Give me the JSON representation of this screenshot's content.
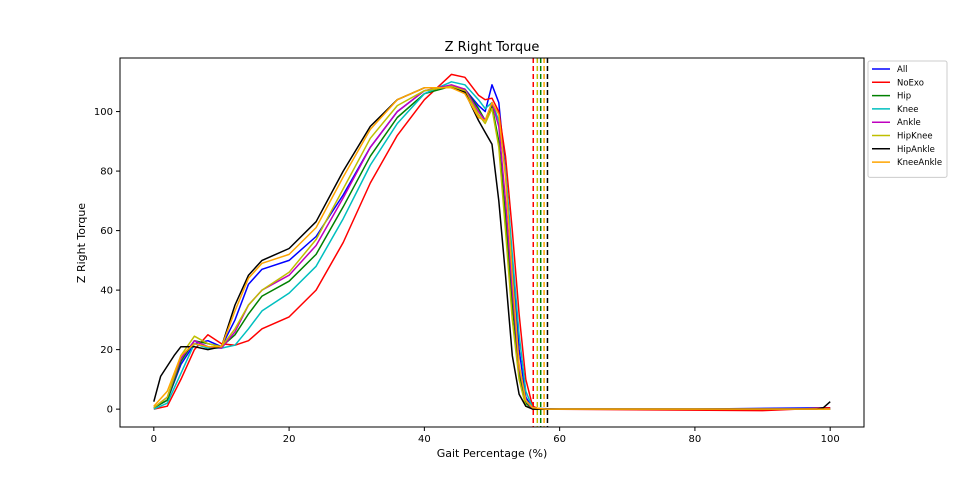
{
  "chart_data": {
    "type": "line",
    "title": "Z Right Torque",
    "xlabel": "Gait Percentage (%)",
    "ylabel": "Z Right Torque",
    "xlim": [
      -5,
      105
    ],
    "ylim": [
      -6,
      118
    ],
    "xticks": [
      0,
      20,
      40,
      60,
      80,
      100
    ],
    "yticks": [
      0,
      20,
      40,
      60,
      80,
      100
    ],
    "grid": false,
    "legend_position": "outside-top-right",
    "series": [
      {
        "name": "All",
        "color": "#0000ff",
        "points": [
          [
            0,
            0.5
          ],
          [
            2,
            3
          ],
          [
            4,
            15
          ],
          [
            6,
            22
          ],
          [
            8,
            23
          ],
          [
            10,
            21
          ],
          [
            12,
            30
          ],
          [
            14,
            42
          ],
          [
            16,
            47
          ],
          [
            20,
            50
          ],
          [
            24,
            58
          ],
          [
            28,
            72
          ],
          [
            32,
            88
          ],
          [
            36,
            100
          ],
          [
            40,
            107
          ],
          [
            44,
            108.5
          ],
          [
            46,
            107.5
          ],
          [
            48,
            102
          ],
          [
            49,
            100
          ],
          [
            50,
            109
          ],
          [
            51,
            103
          ],
          [
            52,
            80
          ],
          [
            53,
            50
          ],
          [
            54,
            20
          ],
          [
            55,
            4
          ],
          [
            56,
            0.3
          ],
          [
            60,
            0
          ],
          [
            80,
            0
          ],
          [
            100,
            0.5
          ]
        ]
      },
      {
        "name": "NoExo",
        "color": "#ff0000",
        "points": [
          [
            0,
            0
          ],
          [
            2,
            1
          ],
          [
            4,
            10
          ],
          [
            6,
            20
          ],
          [
            8,
            25
          ],
          [
            10,
            22
          ],
          [
            12,
            21.5
          ],
          [
            14,
            23
          ],
          [
            16,
            27
          ],
          [
            20,
            31
          ],
          [
            24,
            40
          ],
          [
            28,
            56
          ],
          [
            32,
            76
          ],
          [
            36,
            92
          ],
          [
            40,
            104
          ],
          [
            44,
            112.5
          ],
          [
            46,
            111.5
          ],
          [
            48,
            105.5
          ],
          [
            49,
            104
          ],
          [
            50,
            104.5
          ],
          [
            51,
            100
          ],
          [
            52,
            85
          ],
          [
            53,
            60
          ],
          [
            54,
            32
          ],
          [
            55,
            10
          ],
          [
            56,
            1
          ],
          [
            57,
            0
          ],
          [
            90,
            -0.5
          ],
          [
            100,
            0.5
          ]
        ]
      },
      {
        "name": "Hip",
        "color": "#008000",
        "points": [
          [
            0,
            0.5
          ],
          [
            2,
            3
          ],
          [
            4,
            16
          ],
          [
            6,
            23
          ],
          [
            8,
            22
          ],
          [
            10,
            21
          ],
          [
            12,
            25
          ],
          [
            14,
            32
          ],
          [
            16,
            38
          ],
          [
            20,
            43
          ],
          [
            24,
            52
          ],
          [
            28,
            68
          ],
          [
            32,
            85
          ],
          [
            36,
            98
          ],
          [
            40,
            106
          ],
          [
            44,
            108.5
          ],
          [
            46,
            107.5
          ],
          [
            48,
            101
          ],
          [
            49,
            97
          ],
          [
            50,
            102
          ],
          [
            51,
            90
          ],
          [
            52,
            65
          ],
          [
            53,
            35
          ],
          [
            54,
            12
          ],
          [
            55,
            2
          ],
          [
            56,
            0
          ],
          [
            100,
            0
          ]
        ]
      },
      {
        "name": "Knee",
        "color": "#00bfbf",
        "points": [
          [
            0,
            0
          ],
          [
            2,
            2
          ],
          [
            4,
            12
          ],
          [
            6,
            22
          ],
          [
            8,
            20.5
          ],
          [
            10,
            20.5
          ],
          [
            12,
            21.5
          ],
          [
            14,
            27
          ],
          [
            16,
            33
          ],
          [
            20,
            39
          ],
          [
            24,
            48
          ],
          [
            28,
            64
          ],
          [
            32,
            82
          ],
          [
            36,
            96
          ],
          [
            40,
            106
          ],
          [
            44,
            110
          ],
          [
            46,
            109
          ],
          [
            48,
            104
          ],
          [
            49,
            101
          ],
          [
            50,
            103
          ],
          [
            51,
            97
          ],
          [
            52,
            80
          ],
          [
            53,
            52
          ],
          [
            54,
            25
          ],
          [
            55,
            6
          ],
          [
            56,
            0.5
          ],
          [
            58,
            0
          ],
          [
            100,
            0
          ]
        ]
      },
      {
        "name": "Ankle",
        "color": "#bf00bf",
        "points": [
          [
            0,
            0.5
          ],
          [
            2,
            4
          ],
          [
            4,
            17
          ],
          [
            6,
            23
          ],
          [
            8,
            21
          ],
          [
            10,
            20.5
          ],
          [
            12,
            26
          ],
          [
            14,
            35
          ],
          [
            16,
            40
          ],
          [
            20,
            45
          ],
          [
            24,
            55
          ],
          [
            28,
            71
          ],
          [
            32,
            88
          ],
          [
            36,
            100
          ],
          [
            40,
            107
          ],
          [
            44,
            109
          ],
          [
            46,
            107.5
          ],
          [
            48,
            100
          ],
          [
            49,
            97
          ],
          [
            50,
            103
          ],
          [
            51,
            95
          ],
          [
            52,
            70
          ],
          [
            53,
            40
          ],
          [
            54,
            14
          ],
          [
            55,
            3
          ],
          [
            56,
            0
          ],
          [
            100,
            0
          ]
        ]
      },
      {
        "name": "HipKnee",
        "color": "#bfbf00",
        "points": [
          [
            0,
            0.5
          ],
          [
            2,
            4
          ],
          [
            4,
            18
          ],
          [
            6,
            24.5
          ],
          [
            8,
            22
          ],
          [
            10,
            21
          ],
          [
            12,
            27
          ],
          [
            14,
            35
          ],
          [
            16,
            40
          ],
          [
            20,
            46
          ],
          [
            24,
            57
          ],
          [
            28,
            74
          ],
          [
            32,
            91
          ],
          [
            36,
            102
          ],
          [
            40,
            107
          ],
          [
            44,
            108.5
          ],
          [
            46,
            107
          ],
          [
            48,
            99
          ],
          [
            49,
            96
          ],
          [
            50,
            101
          ],
          [
            51,
            88
          ],
          [
            52,
            60
          ],
          [
            53,
            30
          ],
          [
            54,
            10
          ],
          [
            55,
            1
          ],
          [
            56,
            0
          ],
          [
            100,
            0
          ]
        ]
      },
      {
        "name": "HipAnkle",
        "color": "#000000",
        "points": [
          [
            0,
            2.5
          ],
          [
            1,
            11
          ],
          [
            3,
            18
          ],
          [
            4,
            21
          ],
          [
            6,
            21
          ],
          [
            8,
            20
          ],
          [
            10,
            21
          ],
          [
            12,
            35
          ],
          [
            14,
            45
          ],
          [
            16,
            50
          ],
          [
            20,
            54
          ],
          [
            24,
            63
          ],
          [
            28,
            80
          ],
          [
            32,
            95
          ],
          [
            36,
            104
          ],
          [
            40,
            108
          ],
          [
            44,
            108
          ],
          [
            46,
            106.5
          ],
          [
            48,
            97
          ],
          [
            49,
            93
          ],
          [
            50,
            89
          ],
          [
            51,
            70
          ],
          [
            52,
            45
          ],
          [
            53,
            18
          ],
          [
            54,
            5
          ],
          [
            55,
            1
          ],
          [
            56,
            0
          ],
          [
            98,
            0
          ],
          [
            99,
            0.5
          ],
          [
            100,
            2.5
          ]
        ]
      },
      {
        "name": "KneeAnkle",
        "color": "#ffa500",
        "points": [
          [
            0,
            1
          ],
          [
            2,
            6
          ],
          [
            4,
            18
          ],
          [
            6,
            22
          ],
          [
            8,
            21
          ],
          [
            10,
            21
          ],
          [
            12,
            33
          ],
          [
            14,
            44
          ],
          [
            16,
            49
          ],
          [
            20,
            52
          ],
          [
            24,
            61
          ],
          [
            28,
            78
          ],
          [
            32,
            94
          ],
          [
            36,
            104
          ],
          [
            40,
            108
          ],
          [
            44,
            108
          ],
          [
            46,
            106
          ],
          [
            48,
            98
          ],
          [
            49,
            97
          ],
          [
            50,
            103
          ],
          [
            51,
            99
          ],
          [
            52,
            78
          ],
          [
            53,
            45
          ],
          [
            54,
            15
          ],
          [
            55,
            3
          ],
          [
            56,
            0.5
          ],
          [
            58,
            0
          ],
          [
            100,
            0
          ]
        ]
      }
    ],
    "vertical_lines": [
      {
        "x": 56.1,
        "color": "#ff0000"
      },
      {
        "x": 56.7,
        "color": "#bfbf00"
      },
      {
        "x": 57.2,
        "color": "#008000"
      },
      {
        "x": 57.7,
        "color": "#ffa500"
      },
      {
        "x": 58.2,
        "color": "#000000"
      }
    ]
  }
}
